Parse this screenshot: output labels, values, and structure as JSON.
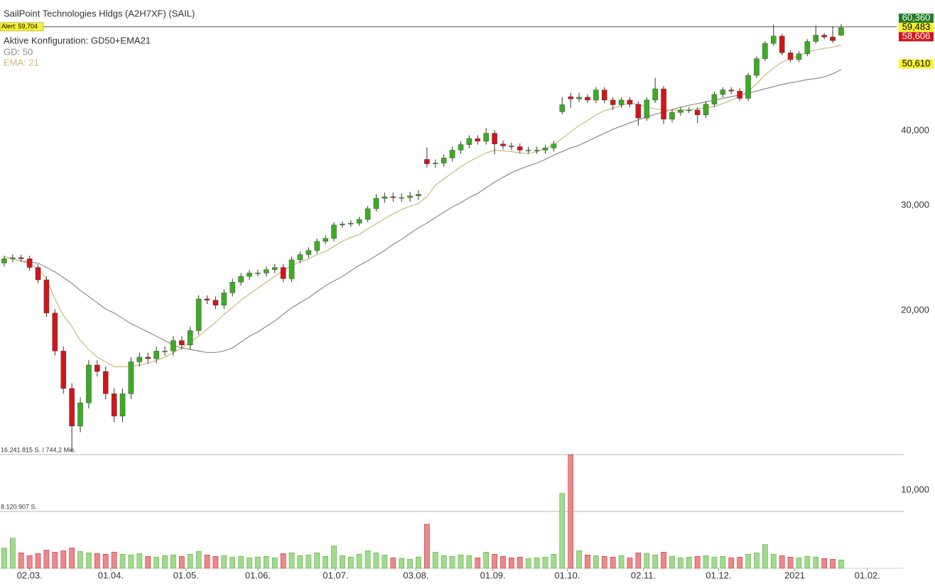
{
  "chart_data": {
    "type": "candlestick",
    "title": "SailPoint Technologies Hldgs (A2H7XF) (SAIL)",
    "subtitle": "Aktive Konfiguration: GD50+EMA21",
    "log_scale": true,
    "xlim": [
      -0.5,
      106.4
    ],
    "ylim": [
      10,
      66.2
    ],
    "yticks": [
      {
        "value": 40,
        "label": "40,000"
      },
      {
        "value": 30,
        "label": "30,000"
      },
      {
        "value": 20,
        "label": "20,000"
      },
      {
        "value": 10,
        "label": "10,000"
      }
    ],
    "xticks": [
      {
        "value": 3.0,
        "label": "02.03."
      },
      {
        "value": 12.6,
        "label": "01.04."
      },
      {
        "value": 21.5,
        "label": "01.05."
      },
      {
        "value": 30.0,
        "label": "01.06."
      },
      {
        "value": 39.2,
        "label": "01.07."
      },
      {
        "value": 48.7,
        "label": "03.08."
      },
      {
        "value": 57.8,
        "label": "01.09."
      },
      {
        "value": 66.6,
        "label": "01.10."
      },
      {
        "value": 75.6,
        "label": "02.11."
      },
      {
        "value": 84.5,
        "label": "01.12."
      },
      {
        "value": 93.5,
        "label": "2021"
      },
      {
        "value": 102.1,
        "label": "01.02."
      }
    ],
    "open": [
      24.0,
      24.4,
      24.5,
      24.4,
      23.6,
      22.5,
      19.8,
      17.1,
      14.8,
      12.8,
      14.0,
      16.2,
      15.8,
      14.5,
      13.3,
      14.5,
      16.4,
      16.7,
      16.6,
      17.1,
      17.1,
      17.8,
      17.5,
      18.5,
      20.9,
      20.8,
      20.4,
      21.4,
      22.3,
      22.8,
      23.1,
      23.1,
      23.4,
      23.6,
      22.6,
      24.3,
      24.8,
      25.2,
      26.1,
      26.4,
      27.8,
      27.9,
      28.0,
      28.4,
      29.6,
      30.8,
      31.0,
      30.9,
      30.9,
      31.1,
      35.8,
      35.2,
      35.3,
      36.0,
      37.1,
      37.9,
      38.8,
      38.4,
      39.6,
      38.0,
      37.7,
      37.6,
      37.1,
      37.1,
      37.1,
      37.4,
      43.0,
      45.6,
      45.2,
      45.5,
      45.0,
      46.8,
      45.0,
      44.2,
      45.0,
      44.3,
      42.0,
      45.0,
      47.0,
      41.8,
      42.9,
      43.3,
      43.3,
      42.5,
      44.3,
      46.0,
      46.8,
      46.6,
      45.3,
      49.5,
      52.8,
      56.0,
      57.6,
      54.0,
      52.6,
      53.8,
      56.4,
      57.8,
      57.4,
      57.8
    ],
    "high": [
      24.7,
      24.8,
      24.8,
      24.7,
      23.9,
      22.8,
      20.1,
      17.4,
      15.1,
      14.3,
      16.5,
      16.5,
      16.1,
      14.8,
      14.8,
      16.7,
      17.0,
      17.0,
      17.4,
      17.4,
      18.1,
      18.1,
      18.8,
      21.2,
      21.2,
      21.1,
      21.7,
      22.6,
      23.1,
      23.4,
      23.4,
      23.7,
      23.9,
      23.9,
      24.6,
      25.1,
      25.5,
      26.4,
      26.7,
      28.1,
      28.2,
      28.3,
      28.7,
      29.9,
      31.3,
      31.5,
      31.5,
      31.4,
      31.6,
      31.8,
      37.5,
      35.8,
      36.5,
      37.6,
      38.4,
      39.3,
      39.3,
      40.4,
      40.1,
      38.5,
      38.2,
      38.1,
      37.6,
      37.6,
      37.9,
      38.5,
      45.5,
      46.3,
      46.3,
      46.0,
      47.3,
      47.3,
      45.5,
      45.5,
      45.5,
      44.8,
      45.5,
      49.0,
      47.5,
      43.4,
      43.8,
      43.8,
      43.8,
      44.8,
      46.5,
      47.3,
      47.3,
      47.1,
      50.0,
      53.3,
      56.5,
      60.2,
      58.1,
      54.5,
      54.3,
      56.9,
      60.0,
      58.3,
      59.8,
      60.36
    ],
    "low": [
      23.7,
      24.1,
      24.1,
      23.3,
      22.2,
      19.5,
      16.8,
      14.5,
      11.6,
      12.5,
      13.7,
      15.5,
      14.2,
      13.0,
      13.0,
      14.2,
      16.1,
      16.3,
      16.3,
      16.8,
      16.8,
      17.2,
      17.2,
      18.2,
      20.5,
      20.1,
      20.1,
      21.1,
      22.0,
      22.5,
      22.8,
      22.8,
      23.1,
      22.3,
      22.3,
      24.0,
      24.5,
      24.9,
      25.8,
      26.1,
      27.5,
      27.6,
      27.7,
      28.1,
      29.3,
      30.3,
      30.4,
      30.4,
      30.4,
      30.6,
      34.7,
      34.7,
      34.8,
      35.5,
      36.6,
      37.4,
      37.9,
      37.9,
      36.5,
      37.2,
      37.1,
      36.6,
      36.6,
      36.6,
      36.6,
      36.9,
      42.6,
      43.7,
      44.7,
      44.5,
      44.5,
      44.5,
      43.3,
      43.7,
      43.8,
      40.8,
      41.5,
      44.5,
      41.0,
      41.3,
      42.4,
      42.8,
      41.2,
      42.0,
      43.8,
      45.5,
      46.1,
      44.8,
      44.8,
      49.0,
      52.3,
      55.5,
      53.5,
      52.1,
      52.1,
      53.3,
      55.9,
      56.9,
      56.1,
      57.6
    ],
    "close": [
      24.4,
      24.5,
      24.4,
      23.6,
      22.5,
      19.8,
      17.1,
      14.8,
      12.8,
      14.0,
      16.2,
      15.8,
      14.5,
      13.3,
      14.5,
      16.4,
      16.7,
      16.6,
      17.1,
      17.1,
      17.8,
      17.5,
      18.5,
      20.9,
      20.8,
      20.4,
      21.4,
      22.3,
      22.8,
      23.1,
      23.1,
      23.4,
      23.6,
      22.6,
      24.3,
      24.8,
      25.2,
      26.1,
      26.4,
      27.8,
      27.9,
      28.0,
      28.4,
      29.6,
      30.8,
      31.0,
      30.9,
      30.9,
      31.1,
      31.3,
      35.2,
      35.3,
      36.0,
      37.1,
      37.9,
      38.8,
      38.4,
      39.6,
      38.0,
      37.7,
      37.6,
      37.1,
      37.1,
      37.1,
      37.4,
      38.0,
      44.2,
      45.2,
      45.5,
      45.0,
      46.8,
      45.0,
      44.2,
      45.0,
      44.3,
      42.0,
      45.0,
      47.0,
      41.8,
      42.9,
      43.3,
      43.3,
      42.5,
      44.3,
      46.0,
      46.8,
      46.6,
      45.3,
      49.5,
      52.8,
      56.0,
      57.6,
      54.0,
      52.6,
      53.8,
      56.4,
      57.8,
      57.4,
      56.6,
      59.483
    ],
    "up_color": "#3cac22",
    "down_color": "#d0161c",
    "lines": [
      {
        "name": "GD: 50",
        "color": "#8c8c8c",
        "values": [
          24.6,
          24.4,
          24.2,
          24.1,
          24.0,
          23.6,
          23.2,
          22.7,
          22.2,
          21.6,
          21.1,
          20.6,
          20.1,
          19.8,
          19.4,
          19.0,
          18.7,
          18.4,
          18.1,
          17.8,
          17.5,
          17.3,
          17.2,
          17.1,
          17.0,
          17.0,
          17.1,
          17.3,
          17.7,
          18.1,
          18.4,
          18.8,
          19.2,
          19.7,
          20.2,
          20.6,
          21.0,
          21.5,
          22.0,
          22.4,
          22.8,
          23.3,
          23.8,
          24.2,
          24.7,
          25.2,
          25.8,
          26.3,
          26.9,
          27.5,
          28.0,
          28.6,
          29.2,
          29.8,
          30.3,
          30.9,
          31.4,
          32.1,
          32.8,
          33.4,
          34.0,
          34.5,
          34.9,
          35.3,
          35.8,
          36.4,
          36.9,
          37.4,
          37.8,
          38.4,
          39.0,
          39.6,
          40.2,
          40.7,
          41.2,
          41.7,
          42.2,
          42.6,
          43.0,
          43.4,
          43.8,
          44.1,
          44.4,
          44.7,
          45.0,
          45.3,
          45.6,
          45.9,
          46.2,
          46.6,
          47.0,
          47.4,
          47.8,
          48.1,
          48.4,
          48.7,
          48.9,
          49.2,
          49.8,
          50.61
        ]
      },
      {
        "name": "EMA: 21",
        "color": "#c9b97a",
        "values": [
          24.6,
          24.4,
          24.2,
          23.9,
          23.5,
          22.6,
          20.9,
          19.6,
          18.8,
          17.8,
          17.2,
          16.7,
          16.4,
          16.1,
          16.1,
          16.1,
          16.2,
          16.3,
          16.5,
          16.7,
          17.0,
          17.3,
          17.7,
          18.1,
          18.6,
          19.1,
          19.7,
          20.2,
          20.8,
          21.3,
          21.8,
          22.3,
          22.8,
          23.3,
          23.8,
          24.1,
          24.4,
          24.8,
          25.1,
          25.6,
          26.1,
          26.5,
          26.8,
          27.4,
          27.9,
          28.5,
          29.0,
          29.5,
          29.9,
          30.2,
          31.0,
          32.4,
          33.2,
          34.0,
          34.8,
          35.5,
          36.1,
          36.7,
          37.1,
          37.0,
          36.9,
          36.7,
          36.6,
          36.9,
          37.3,
          37.9,
          38.8,
          39.8,
          40.8,
          41.6,
          42.5,
          43.2,
          43.6,
          44.1,
          44.5,
          44.2,
          43.8,
          43.5,
          43.3,
          43.3,
          43.3,
          43.3,
          43.5,
          43.7,
          43.9,
          44.4,
          45.0,
          45.6,
          46.6,
          47.9,
          49.6,
          50.9,
          52.1,
          52.8,
          53.5,
          54.1,
          54.6,
          54.9,
          55.2,
          55.6
        ]
      }
    ],
    "volume": {
      "values": [
        2900000,
        4300000,
        2200000,
        1800000,
        2100000,
        2600000,
        2300000,
        2500000,
        2900000,
        2400000,
        2200000,
        2100000,
        2000000,
        2300000,
        2000000,
        1900000,
        2100000,
        1700000,
        1600000,
        1800000,
        1900000,
        1700000,
        2000000,
        2400000,
        1900000,
        1700000,
        1800000,
        1600000,
        1700000,
        1500000,
        1600000,
        1700000,
        1500000,
        2100000,
        2200000,
        1800000,
        1900000,
        2200000,
        1700000,
        3200000,
        1800000,
        1600000,
        2000000,
        2500000,
        2200000,
        1900000,
        1500000,
        1400000,
        1300000,
        1600000,
        6300000,
        2300000,
        1800000,
        1700000,
        1900000,
        1800000,
        1500000,
        2300000,
        2000000,
        1700000,
        1500000,
        1600000,
        1400000,
        1500000,
        1600000,
        2000000,
        10700000,
        16241815,
        2500000,
        1900000,
        1800000,
        1700000,
        1600000,
        1800000,
        1500000,
        2200000,
        2100000,
        1900000,
        2300000,
        1700000,
        1500000,
        1600000,
        1700000,
        1800000,
        1600000,
        1700000,
        1500000,
        1600000,
        2000000,
        2200000,
        3400000,
        2000000,
        1800000,
        1600000,
        1500000,
        1700000,
        1600000,
        1400000,
        1300000,
        1200000
      ],
      "ylim": [
        0,
        16241815
      ],
      "yticks": [
        {
          "value": 16241815,
          "label": "16.241.815 S. / 744,2 Mio."
        },
        {
          "value": 8120907,
          "label": "8.120.907 S."
        }
      ],
      "up_color": "#a3d98e",
      "down_color": "#e88a8d"
    },
    "alert": {
      "value": 59.704,
      "label": "Alert: 59,704"
    },
    "price_labels": [
      {
        "value": 60.36,
        "label": "60,360",
        "bg": "#1f7a22",
        "fg": "#ffffff"
      },
      {
        "value": 59.483,
        "label": "59,483",
        "bg": "#f7f22a",
        "fg": "#000000"
      },
      {
        "value": 58.606,
        "label": "58,606",
        "bg": "#d0161c",
        "fg": "#ffffff"
      },
      {
        "value": 50.61,
        "label": "50,610",
        "bg": "#f7f22a",
        "fg": "#000000"
      }
    ]
  }
}
